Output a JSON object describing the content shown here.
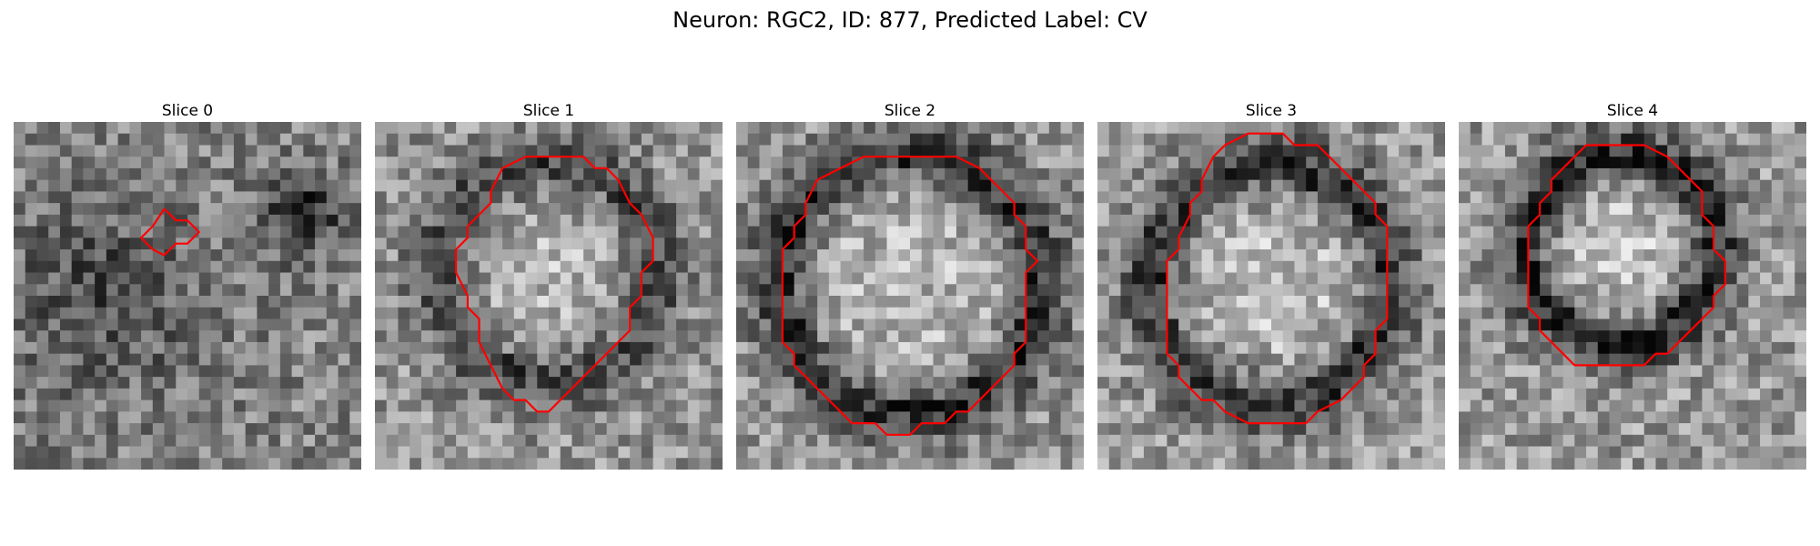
{
  "figure": {
    "title": "Neuron: RGC2, ID: 877, Predicted Label: CV"
  },
  "colors": {
    "contour": "#ff0000",
    "background": "#ffffff"
  },
  "panels": [
    {
      "title": "Slice 0",
      "contour": [
        [
          13,
          7.5
        ],
        [
          14,
          8.5
        ],
        [
          15,
          8.5
        ],
        [
          16,
          9.5
        ],
        [
          15,
          10.5
        ],
        [
          14,
          10.5
        ],
        [
          13,
          11.5
        ],
        [
          12,
          11
        ],
        [
          11,
          10
        ],
        [
          12,
          9
        ],
        [
          13,
          7.5
        ]
      ]
    },
    {
      "title": "Slice 1",
      "contour": [
        [
          11,
          4
        ],
        [
          13,
          3
        ],
        [
          16,
          3
        ],
        [
          18,
          3
        ],
        [
          19,
          4
        ],
        [
          20,
          4
        ],
        [
          21,
          5
        ],
        [
          22,
          7
        ],
        [
          23,
          8
        ],
        [
          24,
          10
        ],
        [
          24,
          12
        ],
        [
          23,
          13
        ],
        [
          23,
          15
        ],
        [
          22,
          16
        ],
        [
          22,
          18
        ],
        [
          21,
          19
        ],
        [
          20,
          20
        ],
        [
          19,
          21
        ],
        [
          18,
          22
        ],
        [
          17,
          23
        ],
        [
          16,
          24
        ],
        [
          15,
          25
        ],
        [
          14,
          25
        ],
        [
          13,
          24
        ],
        [
          12,
          24
        ],
        [
          11,
          23
        ],
        [
          10,
          21
        ],
        [
          9,
          19
        ],
        [
          9,
          17
        ],
        [
          8,
          16
        ],
        [
          8,
          15
        ],
        [
          7,
          13
        ],
        [
          7,
          11
        ],
        [
          8,
          10
        ],
        [
          8,
          9
        ],
        [
          9,
          8
        ],
        [
          10,
          7
        ],
        [
          10,
          6
        ],
        [
          11,
          4
        ]
      ]
    },
    {
      "title": "Slice 2",
      "contour": [
        [
          7,
          5
        ],
        [
          9,
          4
        ],
        [
          11,
          3
        ],
        [
          14,
          3
        ],
        [
          19,
          3
        ],
        [
          21,
          4
        ],
        [
          22,
          5
        ],
        [
          23,
          6
        ],
        [
          24,
          7
        ],
        [
          24,
          8
        ],
        [
          25,
          9
        ],
        [
          25,
          11
        ],
        [
          26,
          12
        ],
        [
          25,
          13
        ],
        [
          25,
          15
        ],
        [
          25,
          17
        ],
        [
          25,
          19
        ],
        [
          24,
          20
        ],
        [
          24,
          21
        ],
        [
          23,
          22
        ],
        [
          22,
          23
        ],
        [
          21,
          24
        ],
        [
          20,
          25
        ],
        [
          19,
          25
        ],
        [
          18,
          26
        ],
        [
          16,
          26
        ],
        [
          15,
          27
        ],
        [
          13,
          27
        ],
        [
          12,
          26
        ],
        [
          10,
          26
        ],
        [
          9,
          25
        ],
        [
          8,
          24
        ],
        [
          7,
          23
        ],
        [
          6,
          22
        ],
        [
          5,
          21
        ],
        [
          5,
          20
        ],
        [
          4,
          19
        ],
        [
          4,
          17
        ],
        [
          4,
          15
        ],
        [
          4,
          13
        ],
        [
          4,
          11
        ],
        [
          5,
          10
        ],
        [
          5,
          9
        ],
        [
          6,
          8
        ],
        [
          6,
          7
        ],
        [
          7,
          5
        ]
      ]
    },
    {
      "title": "Slice 3",
      "contour": [
        [
          10,
          3
        ],
        [
          11,
          2
        ],
        [
          13,
          1
        ],
        [
          14,
          1
        ],
        [
          16,
          1
        ],
        [
          17,
          2
        ],
        [
          19,
          2
        ],
        [
          20,
          3
        ],
        [
          21,
          4
        ],
        [
          22,
          5
        ],
        [
          23,
          6
        ],
        [
          24,
          7
        ],
        [
          24,
          8
        ],
        [
          25,
          9
        ],
        [
          25,
          11
        ],
        [
          25,
          13
        ],
        [
          25,
          15
        ],
        [
          25,
          17
        ],
        [
          24,
          18
        ],
        [
          24,
          20
        ],
        [
          23,
          21
        ],
        [
          23,
          22
        ],
        [
          22,
          23
        ],
        [
          21,
          24
        ],
        [
          19,
          25
        ],
        [
          18,
          26
        ],
        [
          17,
          26
        ],
        [
          15,
          26
        ],
        [
          13,
          26
        ],
        [
          11,
          25
        ],
        [
          10,
          24
        ],
        [
          9,
          24
        ],
        [
          8,
          23
        ],
        [
          7,
          22
        ],
        [
          7,
          21
        ],
        [
          6,
          20
        ],
        [
          6,
          18
        ],
        [
          6,
          16
        ],
        [
          6,
          14
        ],
        [
          6,
          12
        ],
        [
          7,
          11
        ],
        [
          7,
          10
        ],
        [
          8,
          8
        ],
        [
          8,
          7
        ],
        [
          9,
          6
        ],
        [
          9,
          5
        ],
        [
          10,
          3
        ]
      ]
    },
    {
      "title": "Slice 4",
      "contour": [
        [
          9,
          4
        ],
        [
          10,
          3
        ],
        [
          11,
          2
        ],
        [
          16,
          2
        ],
        [
          18,
          3
        ],
        [
          19,
          4
        ],
        [
          20,
          5
        ],
        [
          21,
          6
        ],
        [
          21,
          8
        ],
        [
          22,
          9
        ],
        [
          22,
          11
        ],
        [
          23,
          12
        ],
        [
          23,
          14
        ],
        [
          22,
          15
        ],
        [
          22,
          16
        ],
        [
          21,
          17
        ],
        [
          20,
          18
        ],
        [
          19,
          19
        ],
        [
          18,
          20
        ],
        [
          17,
          20
        ],
        [
          16,
          21
        ],
        [
          14,
          21
        ],
        [
          12,
          21
        ],
        [
          10,
          21
        ],
        [
          9,
          20
        ],
        [
          8,
          19
        ],
        [
          7,
          18
        ],
        [
          7,
          17
        ],
        [
          6,
          16
        ],
        [
          6,
          15
        ],
        [
          6,
          13
        ],
        [
          6,
          11
        ],
        [
          6,
          9
        ],
        [
          7,
          8
        ],
        [
          7,
          7
        ],
        [
          8,
          6
        ],
        [
          8,
          5
        ],
        [
          9,
          4
        ]
      ]
    }
  ]
}
